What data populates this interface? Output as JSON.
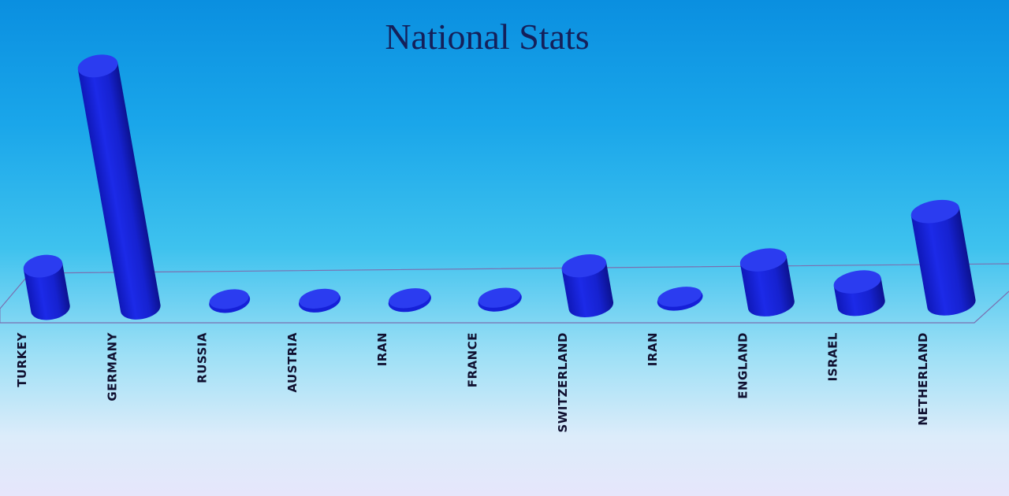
{
  "chart_data": {
    "type": "bar",
    "title": "National Stats",
    "xlabel": "",
    "ylabel": "",
    "grid": false,
    "categories": [
      "TURKEY",
      "GERMANY",
      "RUSSIA",
      "AUSTRIA",
      "IRAN",
      "FRANCE",
      "SWITZERLAND",
      "IRAN",
      "ENGLAND",
      "ISRAEL",
      "NETHERLAND"
    ],
    "values": [
      17,
      97,
      0,
      0,
      0,
      0,
      16,
      0,
      18,
      9,
      37
    ],
    "ylim": [
      0,
      100
    ]
  },
  "colors": {
    "bar_body": "#1520d8",
    "bar_top": "#2b3cf0",
    "floor_line": "#7a6fb0"
  }
}
